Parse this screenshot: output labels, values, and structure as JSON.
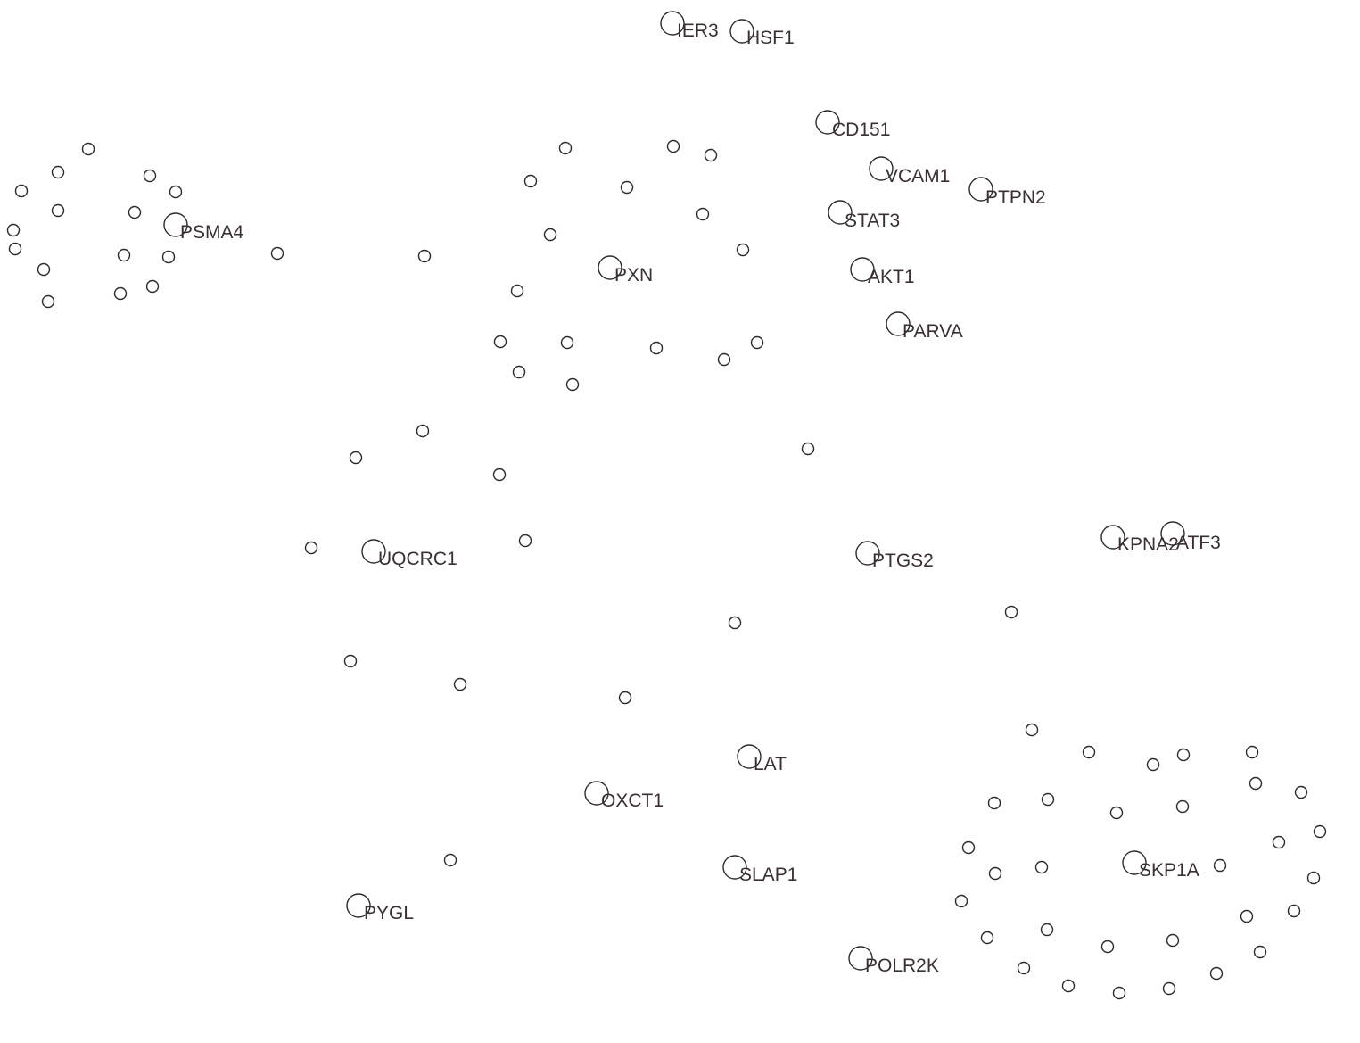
{
  "diagram": {
    "labeled_nodes": [
      {
        "label": "IER3"
      },
      {
        "label": "HSF1"
      },
      {
        "label": "CD151"
      },
      {
        "label": "VCAM1"
      },
      {
        "label": "PTPN2"
      },
      {
        "label": "STAT3"
      },
      {
        "label": "AKT1"
      },
      {
        "label": "PARVA"
      },
      {
        "label": "PXN"
      },
      {
        "label": "PSMA4"
      },
      {
        "label": "UQCRC1"
      },
      {
        "label": "PTGS2"
      },
      {
        "label": "KPNA2"
      },
      {
        "label": "ATF3"
      },
      {
        "label": "LAT"
      },
      {
        "label": "OXCT1"
      },
      {
        "label": "SLAP1"
      },
      {
        "label": "PYGL"
      },
      {
        "label": "POLR2K"
      },
      {
        "label": "SKP1A"
      }
    ],
    "unlabeled_node_count": 97
  }
}
